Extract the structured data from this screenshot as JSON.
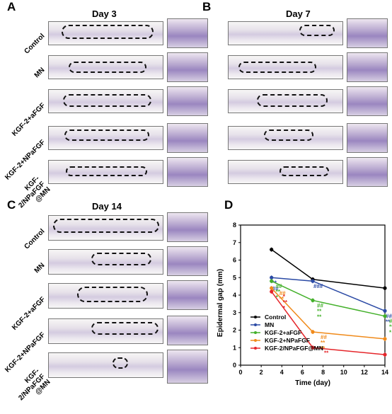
{
  "panels": {
    "A": {
      "letter": "A",
      "title": "Day 3"
    },
    "B": {
      "letter": "B",
      "title": "Day 7"
    },
    "C": {
      "letter": "C",
      "title": "Day 14"
    },
    "D": {
      "letter": "D"
    }
  },
  "row_labels": [
    "Control",
    "MN",
    "KGF-2+aFGF",
    "KGF-2+NPaFGF",
    "KGF-2/NPaFGF @MN"
  ],
  "chart_data": {
    "type": "line",
    "xlabel": "Time (day)",
    "ylabel": "Epidermal gap (mm)",
    "xlim": [
      0,
      14
    ],
    "ylim": [
      0,
      8
    ],
    "xticks": [
      0,
      2,
      4,
      6,
      8,
      10,
      12,
      14
    ],
    "yticks": [
      0,
      1,
      2,
      3,
      4,
      5,
      6,
      7,
      8
    ],
    "x": [
      3,
      7,
      14
    ],
    "series": [
      {
        "name": "Control",
        "color": "#000000",
        "values": [
          6.6,
          4.9,
          4.4
        ],
        "annotations": [
          "",
          "",
          ""
        ]
      },
      {
        "name": "MN",
        "color": "#2b4aa5",
        "values": [
          5.0,
          4.8,
          3.1
        ],
        "annotations": [
          "**\n##",
          "###",
          "##\n**"
        ]
      },
      {
        "name": "KGF-2+aFGF",
        "color": "#43b02a",
        "values": [
          4.8,
          3.7,
          2.8
        ],
        "annotations": [
          "##\n**\n*",
          "##\n**\n**",
          "##\n**\n*"
        ]
      },
      {
        "name": "KGF-2+NPaFGF",
        "color": "#f08a1a",
        "values": [
          4.4,
          1.9,
          1.5
        ],
        "annotations": [
          "##\n**",
          "##\n**\n**",
          "##\n**\n**"
        ]
      },
      {
        "name": "KGF-2/NPaFGF@MN",
        "color": "#e5262b",
        "values": [
          4.2,
          1.0,
          0.6
        ],
        "annotations": [
          "*\n**\n*",
          "**",
          "**\n**"
        ]
      }
    ]
  }
}
